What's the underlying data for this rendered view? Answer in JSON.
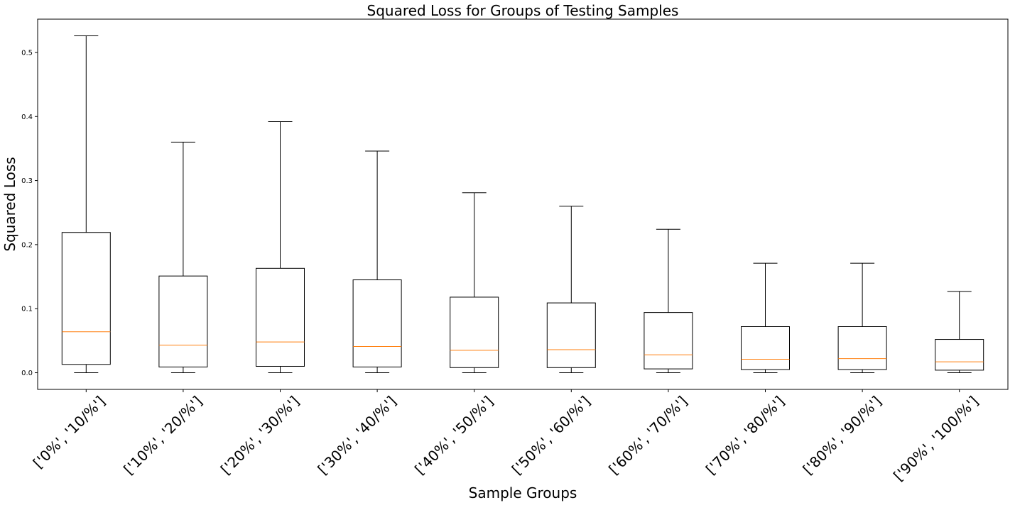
{
  "chart_data": {
    "type": "boxplot",
    "title": "Squared Loss  for Groups of Testing Samples",
    "xlabel": "Sample Groups",
    "ylabel": "Squared Loss",
    "ylim": [
      -0.026,
      0.552
    ],
    "yticks": [
      0.0,
      0.1,
      0.2,
      0.3,
      0.4,
      0.5
    ],
    "ytick_labels": [
      "0.0",
      "0.1",
      "0.2",
      "0.3",
      "0.4",
      "0.5"
    ],
    "grid": false,
    "colors": {
      "box": "#000000",
      "median": "#ff7f0e"
    },
    "categories": [
      "['0%', '10/%']",
      "['10%', '20/%']",
      "['20%', '30/%']",
      "['30%', '40/%']",
      "['40%', '50/%']",
      "['50%', '60/%']",
      "['60%', '70/%']",
      "['70%', '80/%']",
      "['80%', '90/%']",
      "['90%', '100/%']"
    ],
    "boxes": [
      {
        "whisker_low": 0.0,
        "q1": 0.013,
        "median": 0.064,
        "q3": 0.219,
        "whisker_high": 0.526
      },
      {
        "whisker_low": 0.0,
        "q1": 0.009,
        "median": 0.043,
        "q3": 0.151,
        "whisker_high": 0.36
      },
      {
        "whisker_low": 0.0,
        "q1": 0.01,
        "median": 0.048,
        "q3": 0.163,
        "whisker_high": 0.392
      },
      {
        "whisker_low": 0.0,
        "q1": 0.009,
        "median": 0.041,
        "q3": 0.145,
        "whisker_high": 0.346
      },
      {
        "whisker_low": 0.0,
        "q1": 0.008,
        "median": 0.035,
        "q3": 0.118,
        "whisker_high": 0.281
      },
      {
        "whisker_low": 0.0,
        "q1": 0.008,
        "median": 0.036,
        "q3": 0.109,
        "whisker_high": 0.26
      },
      {
        "whisker_low": 0.0,
        "q1": 0.006,
        "median": 0.028,
        "q3": 0.094,
        "whisker_high": 0.224
      },
      {
        "whisker_low": 0.0,
        "q1": 0.005,
        "median": 0.021,
        "q3": 0.072,
        "whisker_high": 0.171
      },
      {
        "whisker_low": 0.0,
        "q1": 0.005,
        "median": 0.022,
        "q3": 0.072,
        "whisker_high": 0.171
      },
      {
        "whisker_low": 0.0,
        "q1": 0.004,
        "median": 0.017,
        "q3": 0.052,
        "whisker_high": 0.127
      }
    ]
  }
}
